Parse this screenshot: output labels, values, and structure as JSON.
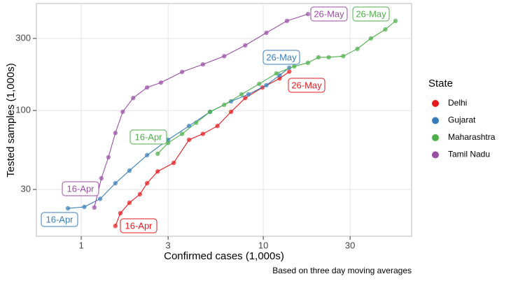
{
  "chart_data": {
    "type": "scatter-line",
    "x_label": "Confirmed cases (1,000s)",
    "y_label": "Tested samples (1,000s)",
    "caption": "Based on three day moving averages",
    "legend_title": "State",
    "log_x": true,
    "log_y": true,
    "grid": true,
    "xlim": [
      0.567,
      65.3
    ],
    "ylim": [
      14.7,
      511
    ],
    "xticks": [
      1,
      3,
      10,
      30
    ],
    "yticks": [
      30,
      100,
      300
    ],
    "series": [
      {
        "name": "Delhi",
        "color": "#e41a1c",
        "labels": [
          "16-Apr",
          "26-May"
        ],
        "x": [
          1.54,
          1.64,
          1.84,
          2.1,
          2.3,
          2.63,
          3.22,
          3.91,
          4.66,
          5.6,
          6.65,
          7.96,
          9.9,
          12.3,
          13.9
        ],
        "values": [
          17.2,
          20.9,
          24.5,
          27.9,
          33,
          39.5,
          45,
          64,
          70,
          79,
          98,
          121,
          142,
          163,
          181
        ]
      },
      {
        "name": "Gujarat",
        "color": "#377eb8",
        "labels": [
          "16-Apr",
          "26-May"
        ],
        "x": [
          0.845,
          1.04,
          1.27,
          1.54,
          1.84,
          2.3,
          3.0,
          3.91,
          5.1,
          6.65,
          8.3,
          10.4,
          12.3,
          13.9
        ],
        "values": [
          22.5,
          23.0,
          26,
          33,
          40,
          50.6,
          64,
          79,
          98,
          115,
          128,
          147,
          171,
          192
        ]
      },
      {
        "name": "Maharashtra",
        "color": "#4daf4a",
        "labels": [
          "16-Apr",
          "26-May"
        ],
        "x": [
          2.63,
          3.0,
          3.58,
          4.28,
          5.1,
          6.1,
          7.6,
          9.5,
          11.8,
          14.8,
          17.6,
          20.1,
          22.9,
          27.5,
          32.9,
          39.0,
          46.8,
          53.3
        ],
        "values": [
          51.7,
          61,
          70,
          83,
          98,
          109,
          128,
          150,
          176,
          196,
          207,
          225,
          225,
          229,
          256,
          300,
          344,
          392
        ]
      },
      {
        "name": "Tamil Nadu",
        "color": "#984ea3",
        "labels": [
          "16-Apr",
          "26-May"
        ],
        "x": [
          1.18,
          1.29,
          1.41,
          1.54,
          1.69,
          1.93,
          2.3,
          2.74,
          3.58,
          4.66,
          6.1,
          7.96,
          10.4,
          13.5,
          17.6
        ],
        "values": [
          22.8,
          35.6,
          49,
          71,
          98,
          121,
          142,
          153,
          180,
          202,
          229,
          270,
          327,
          392,
          435
        ]
      }
    ]
  }
}
